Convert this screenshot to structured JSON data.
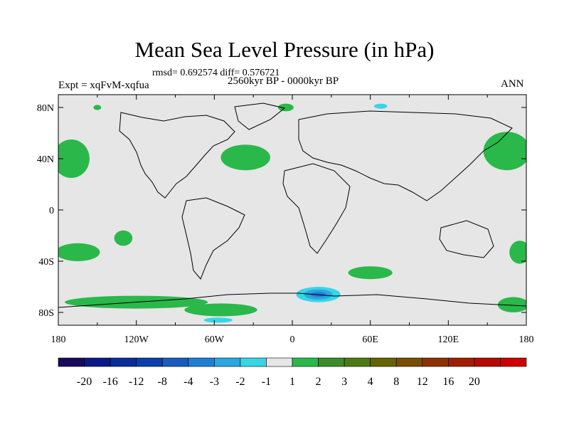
{
  "title": "Mean Sea Level Pressure (in hPa)",
  "stats": "rmsd= 0.692574 diff= 0.576721",
  "experiment": "Expt = xqFvM-xqfua",
  "period": "2560kyr BP - 0000kyr BP",
  "season": "ANN",
  "chart_data": {
    "type": "heatmap",
    "title": "Mean Sea Level Pressure (in hPa)",
    "xlim": [
      -180,
      180
    ],
    "ylim": [
      -90,
      90
    ],
    "x_ticks": [
      {
        "value": -180,
        "label": "180"
      },
      {
        "value": -120,
        "label": "120W"
      },
      {
        "value": -60,
        "label": "60W"
      },
      {
        "value": 0,
        "label": "0"
      },
      {
        "value": 60,
        "label": "60E"
      },
      {
        "value": 120,
        "label": "120E"
      },
      {
        "value": 180,
        "label": "180"
      }
    ],
    "y_ticks": [
      {
        "value": 80,
        "label": "80N"
      },
      {
        "value": 40,
        "label": "40N"
      },
      {
        "value": 0,
        "label": "0"
      },
      {
        "value": -40,
        "label": "40S"
      },
      {
        "value": -80,
        "label": "80S"
      }
    ],
    "colorbar": {
      "colors": [
        "#1a0a5c",
        "#0a1a86",
        "#0a2d9c",
        "#0a40aa",
        "#1a5cbe",
        "#1e7ed4",
        "#2aa6e2",
        "#36d6e6",
        "#e6e6e6",
        "#2ab84a",
        "#3c8c28",
        "#4e7a14",
        "#646400",
        "#7a4e00",
        "#8c3200",
        "#a01e00",
        "#b40a00",
        "#cc0000"
      ],
      "labels": [
        "-20",
        "-16",
        "-12",
        "-8",
        "-4",
        "-3",
        "-2",
        "-1",
        "1",
        "2",
        "3",
        "4",
        "8",
        "12",
        "16",
        "20"
      ]
    },
    "regions": [
      {
        "level": "1 to 2",
        "color": "#2ab84a",
        "lon": -170,
        "lat": 40,
        "rx": 14,
        "ry": 15
      },
      {
        "level": "1 to 2",
        "color": "#2ab84a",
        "lon": -36,
        "lat": 41,
        "rx": 19,
        "ry": 10
      },
      {
        "level": "1 to 2",
        "color": "#2ab84a",
        "lon": 165,
        "lat": 46,
        "rx": 18,
        "ry": 15
      },
      {
        "level": "1 to 2",
        "color": "#2ab84a",
        "lon": -165,
        "lat": -33,
        "rx": 17,
        "ry": 7
      },
      {
        "level": "1 to 2",
        "color": "#2ab84a",
        "lon": -130,
        "lat": -22,
        "rx": 7,
        "ry": 6
      },
      {
        "level": "1 to 2",
        "color": "#2ab84a",
        "lon": 60,
        "lat": -49,
        "rx": 17,
        "ry": 5
      },
      {
        "level": "1 to 2",
        "color": "#2ab84a",
        "lon": -120,
        "lat": -72,
        "rx": 55,
        "ry": 5
      },
      {
        "level": "1 to 2",
        "color": "#2ab84a",
        "lon": -55,
        "lat": -78,
        "rx": 28,
        "ry": 5
      },
      {
        "level": "1 to 2",
        "color": "#2ab84a",
        "lon": 175,
        "lat": -33,
        "rx": 8,
        "ry": 9
      },
      {
        "level": "1 to 2",
        "color": "#2ab84a",
        "lon": 170,
        "lat": -74,
        "rx": 12,
        "ry": 6
      },
      {
        "level": "1 to 2",
        "color": "#2ab84a",
        "lon": -5,
        "lat": 80,
        "rx": 6,
        "ry": 3
      },
      {
        "level": "1 to 2",
        "color": "#2ab84a",
        "lon": -150,
        "lat": 80,
        "rx": 3,
        "ry": 2
      },
      {
        "level": "-2 to -1",
        "color": "#36d6e6",
        "lon": 20,
        "lat": -66,
        "rx": 17,
        "ry": 6
      },
      {
        "level": "-3 to -2",
        "color": "#2aa6e2",
        "lon": 20,
        "lat": -66,
        "rx": 11,
        "ry": 4
      },
      {
        "level": "-4 to -3",
        "color": "#1e7ed4",
        "lon": 20,
        "lat": -66,
        "rx": 6,
        "ry": 2
      },
      {
        "level": "-2 to -1",
        "color": "#36d6e6",
        "lon": -57,
        "lat": -86,
        "rx": 11,
        "ry": 2
      },
      {
        "level": "-2 to -1",
        "color": "#36d6e6",
        "lon": 68,
        "lat": 81,
        "rx": 5,
        "ry": 2
      }
    ]
  }
}
